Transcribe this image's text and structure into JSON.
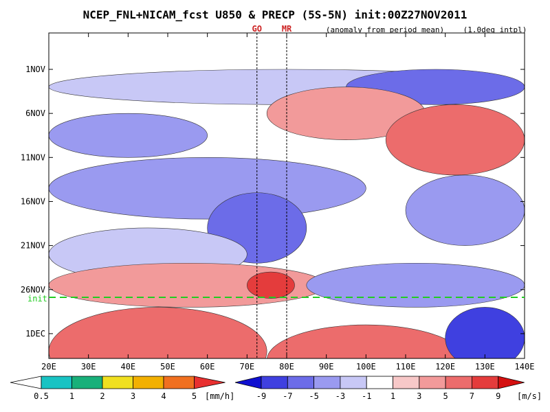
{
  "colors": {
    "init_line": "#22cc22",
    "marker_text": "#cc2222",
    "neg_scale": [
      "#1010d0",
      "#3f40e0",
      "#6c6ce8",
      "#9a9af0",
      "#c8c8f6"
    ],
    "pos_scale": [
      "#f7c8c8",
      "#f29a9a",
      "#ec6c6c",
      "#e43c3c",
      "#d41010"
    ],
    "precip_scale": [
      "#ffffff",
      "#19c3c3",
      "#19b07a",
      "#f0e020",
      "#f2b000",
      "#f07020",
      "#e83030"
    ]
  },
  "chart_data": {
    "type": "heatmap",
    "title": "NCEP_FNL+NICAM_fcst U850 & PRECP (5S-5N) init:00Z27NOV2011",
    "subtitle_left": "(anomaly from period mean)",
    "subtitle_right": "(1.0deg intpl)",
    "x_ticks": [
      "20E",
      "30E",
      "40E",
      "50E",
      "60E",
      "70E",
      "80E",
      "90E",
      "100E",
      "110E",
      "120E",
      "130E",
      "140E"
    ],
    "xlim": [
      20,
      140
    ],
    "y_ticks": [
      "1NOV",
      "6NOV",
      "11NOV",
      "16NOV",
      "21NOV",
      "26NOV",
      "1DEC"
    ],
    "init_label": "init",
    "markers": [
      {
        "label": "GO",
        "lon": 72.5
      },
      {
        "label": "MR",
        "lon": 80
      }
    ],
    "colorbar_precip": {
      "labels": [
        "0.5",
        "1",
        "2",
        "3",
        "4",
        "5"
      ],
      "unit": "[mm/h]"
    },
    "colorbar_u850": {
      "labels": [
        "-9",
        "-7",
        "-5",
        "-3",
        "-1",
        "1",
        "3",
        "5",
        "7",
        "9"
      ],
      "unit": "[m/s]"
    },
    "anomaly_regions": [
      {
        "lon_min": 20,
        "lon_max": 140,
        "day_start": 0,
        "day_end": 4,
        "value": -2
      },
      {
        "lon_min": 95,
        "lon_max": 140,
        "day_start": 0,
        "day_end": 4,
        "value": -5
      },
      {
        "lon_min": 75,
        "lon_max": 115,
        "day_start": 2,
        "day_end": 8,
        "value": 4
      },
      {
        "lon_min": 105,
        "lon_max": 140,
        "day_start": 4,
        "day_end": 12,
        "value": 5
      },
      {
        "lon_min": 20,
        "lon_max": 60,
        "day_start": 5,
        "day_end": 10,
        "value": -3
      },
      {
        "lon_min": 20,
        "lon_max": 100,
        "day_start": 10,
        "day_end": 17,
        "value": -3
      },
      {
        "lon_min": 60,
        "lon_max": 85,
        "day_start": 14,
        "day_end": 22,
        "value": -5
      },
      {
        "lon_min": 110,
        "lon_max": 140,
        "day_start": 12,
        "day_end": 20,
        "value": -3
      },
      {
        "lon_min": 20,
        "lon_max": 70,
        "day_start": 18,
        "day_end": 24,
        "value": -2
      },
      {
        "lon_min": 20,
        "lon_max": 90,
        "day_start": 22,
        "day_end": 27,
        "value": 4
      },
      {
        "lon_min": 70,
        "lon_max": 82,
        "day_start": 23,
        "day_end": 26,
        "value": 8
      },
      {
        "lon_min": 85,
        "lon_max": 140,
        "day_start": 22,
        "day_end": 27,
        "value": -3
      },
      {
        "lon_min": 20,
        "lon_max": 75,
        "day_start": 27,
        "day_end": 37,
        "value": 5
      },
      {
        "lon_min": 75,
        "lon_max": 125,
        "day_start": 29,
        "day_end": 37,
        "value": 6
      },
      {
        "lon_min": 120,
        "lon_max": 140,
        "day_start": 27,
        "day_end": 34,
        "value": -8
      }
    ]
  }
}
